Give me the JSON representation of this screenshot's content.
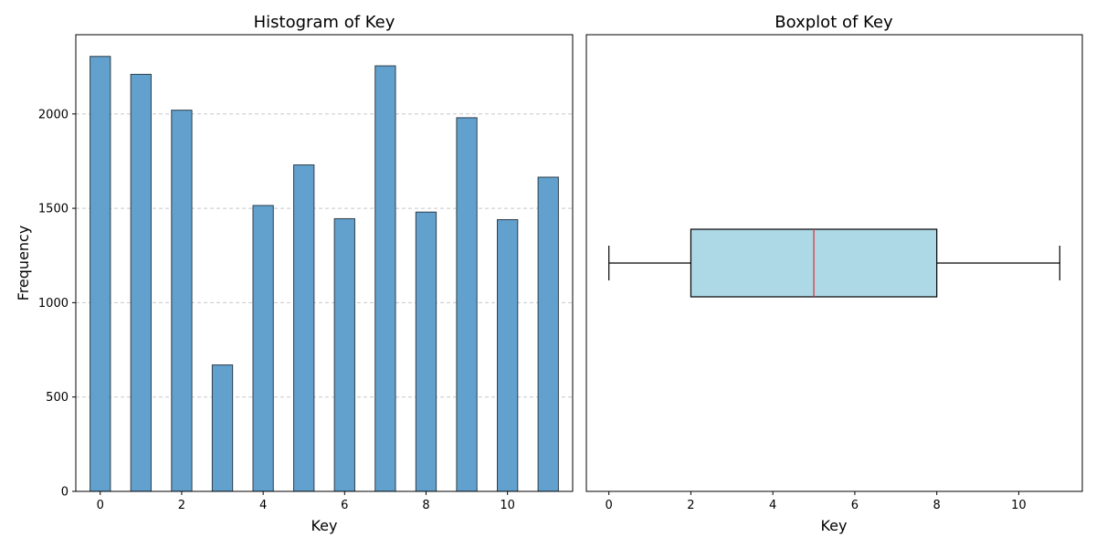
{
  "chart_data": [
    {
      "type": "bar",
      "title": "Histogram of Key",
      "xlabel": "Key",
      "ylabel": "Frequency",
      "x": [
        0,
        1,
        2,
        3,
        4,
        5,
        6,
        7,
        8,
        9,
        10,
        11
      ],
      "values": [
        2305,
        2210,
        2020,
        670,
        1515,
        1730,
        1445,
        2255,
        1480,
        1980,
        1440,
        1665
      ],
      "xlim": [
        -0.6,
        11.6
      ],
      "ylim": [
        0,
        2420
      ],
      "xticks": [
        0,
        2,
        4,
        6,
        8,
        10
      ],
      "yticks": [
        0,
        500,
        1000,
        1500,
        2000
      ],
      "grid": "y-dashed",
      "colors": {
        "bar": "#62a0cd",
        "bar_edge": "#2f3f4a",
        "grid": "#c8c8c8"
      }
    },
    {
      "type": "boxplot",
      "title": "Boxplot of Key",
      "xlabel": "Key",
      "orientation": "horizontal",
      "min": 0,
      "q1": 2,
      "median": 5,
      "q3": 8,
      "max": 11,
      "xlim": [
        -0.55,
        11.55
      ],
      "xticks": [
        0,
        2,
        4,
        6,
        8,
        10
      ],
      "colors": {
        "box": "#add8e6",
        "median": "#e03030",
        "line": "#000000"
      }
    }
  ]
}
